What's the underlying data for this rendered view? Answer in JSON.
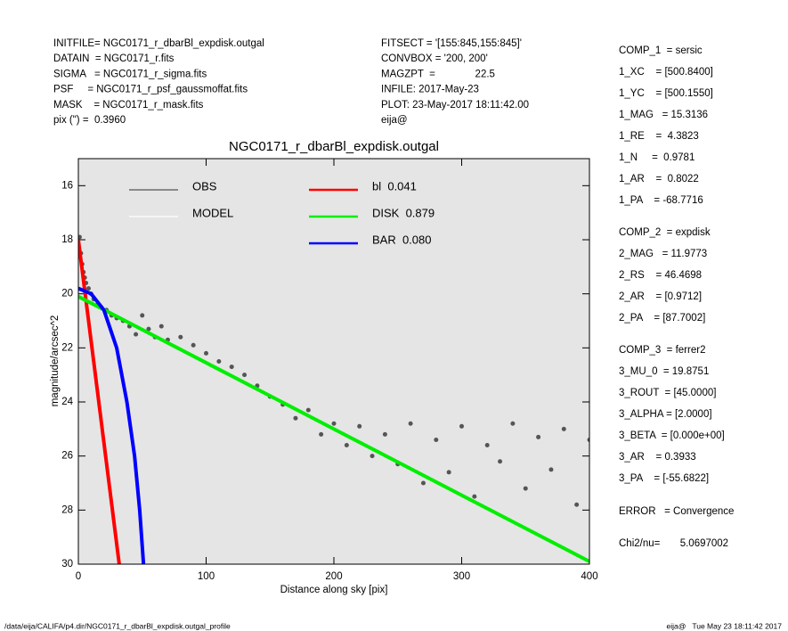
{
  "header": {
    "left": [
      "INITFILE= NGC0171_r_dbarBl_expdisk.outgal",
      "DATAIN  = NGC0171_r.fits",
      "SIGMA   = NGC0171_r_sigma.fits",
      "PSF     = NGC0171_r_psf_gaussmoffat.fits",
      "MASK    = NGC0171_r_mask.fits",
      "pix (\") =  0.3960"
    ],
    "middle": [
      "FITSECT = '[155:845,155:845]'",
      "CONVBOX = '200, 200'",
      "MAGZPT  =              22.5",
      "INFILE: 2017-May-23",
      "PLOT: 23-May-2017 18:11:42.00",
      "eija@"
    ],
    "right": [
      "COMP_1  = sersic",
      "1_XC    = [500.8400]",
      "1_YC    = [500.1550]",
      "1_MAG   = 15.3136",
      "1_RE    =  4.3823",
      "1_N     =  0.9781",
      "1_AR    =  0.8022",
      "1_PA    = -68.7716",
      "COMP_2  = expdisk",
      "2_MAG   = 11.9773",
      "2_RS    = 46.4698",
      "2_AR    = [0.9712]",
      "2_PA    = [87.7002]",
      "COMP_3  = ferrer2",
      "3_MU_0  = 19.8751",
      "3_ROUT  = [45.0000]",
      "3_ALPHA = [2.0000]",
      "3_BETA  = [0.000e+00]",
      "3_AR    = 0.3933",
      "3_PA    = [-55.6822]",
      "ERROR   = Convergence",
      "Chi2/nu=       5.0697002"
    ]
  },
  "footer": {
    "left": "/data/eija/CALIFA/p4.dir/NGC0171_r_dbarBl_expdisk.outgal_profile",
    "right": "eija@   Tue May 23 18:11:42 2017"
  },
  "chart_data": {
    "type": "scatter",
    "title": "NGC0171_r_dbarBl_expdisk.outgal",
    "x_label": "Distance along sky [pix]",
    "y_label": "magnitude/arcsec^2",
    "xlim": [
      0,
      400
    ],
    "xticks": [
      0,
      100,
      200,
      300,
      400
    ],
    "ylim": [
      15,
      30
    ],
    "yticks": [
      16,
      18,
      20,
      22,
      24,
      26,
      28,
      30
    ],
    "y_inverted": true,
    "series": [
      {
        "name": "OBS",
        "color": "#555555",
        "style": "points",
        "x": [
          1,
          2,
          3,
          4,
          5,
          6,
          8,
          10,
          12,
          15,
          18,
          22,
          26,
          30,
          35,
          40,
          45,
          50,
          55,
          60,
          65,
          70,
          80,
          90,
          100,
          110,
          120,
          130,
          140,
          150,
          160,
          170,
          180,
          190,
          200,
          210,
          220,
          230,
          240,
          250,
          260,
          270,
          280,
          290,
          300,
          310,
          320,
          330,
          340,
          350,
          360,
          370,
          380,
          390,
          400
        ],
        "values": [
          17.9,
          18.5,
          18.9,
          19.2,
          19.4,
          19.6,
          19.8,
          20.0,
          20.2,
          20.4,
          20.5,
          20.6,
          20.8,
          20.9,
          21.0,
          21.2,
          21.5,
          20.8,
          21.3,
          21.6,
          21.2,
          21.7,
          21.6,
          21.9,
          22.2,
          22.5,
          22.7,
          23.0,
          23.4,
          23.8,
          24.1,
          24.6,
          24.3,
          25.2,
          24.8,
          25.6,
          24.9,
          26.0,
          25.2,
          26.3,
          24.8,
          27.0,
          25.4,
          26.6,
          24.9,
          27.5,
          25.6,
          26.2,
          24.8,
          27.2,
          25.3,
          26.5,
          25.0,
          27.8,
          25.4
        ]
      },
      {
        "name": "MODEL",
        "color": "#ffffff",
        "style": "line",
        "x": [],
        "values": []
      },
      {
        "name": "bl  0.041",
        "color": "#ff0000",
        "style": "line",
        "x": [
          0,
          32
        ],
        "values": [
          18.0,
          30.0
        ]
      },
      {
        "name": "DISK  0.879",
        "color": "#00ee00",
        "style": "line",
        "x": [
          0,
          400
        ],
        "values": [
          20.1,
          29.9
        ]
      },
      {
        "name": "BAR  0.080",
        "color": "#0000ff",
        "style": "line",
        "x": [
          0,
          10,
          20,
          30,
          38,
          44,
          48,
          51
        ],
        "values": [
          19.8,
          20.0,
          20.6,
          22.0,
          24.0,
          26.0,
          28.0,
          30.0
        ]
      }
    ]
  }
}
